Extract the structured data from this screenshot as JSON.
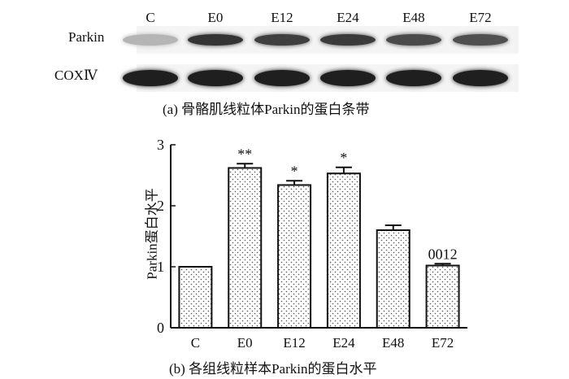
{
  "blot": {
    "lanes": [
      "C",
      "E0",
      "E12",
      "E24",
      "E48",
      "E72"
    ],
    "rows": [
      {
        "label": "Parkin",
        "intensity": [
          0.25,
          0.85,
          0.8,
          0.82,
          0.75,
          0.72
        ]
      },
      {
        "label": "COXⅣ",
        "intensity": [
          0.95,
          0.95,
          0.95,
          0.95,
          0.95,
          0.95
        ]
      }
    ],
    "caption": "(a) 骨骼肌线粒体Parkin的蛋白条带"
  },
  "chart_data": {
    "type": "bar",
    "categories": [
      "C",
      "E0",
      "E12",
      "E24",
      "E48",
      "E72"
    ],
    "values": [
      1.0,
      2.62,
      2.34,
      2.53,
      1.6,
      1.02
    ],
    "errors": [
      0.0,
      0.07,
      0.07,
      0.1,
      0.08,
      0.03
    ],
    "annotations": [
      "",
      "**",
      "*",
      "*",
      "",
      "0012"
    ],
    "ylabel": "Parkin蛋白水平",
    "xlabel": "",
    "ylim": [
      0,
      3
    ],
    "yticks": [
      0,
      1,
      2,
      3
    ],
    "grid": false,
    "bar_fill": "dotted",
    "caption": "(b) 各组线粒样本Parkin的蛋白水平"
  }
}
